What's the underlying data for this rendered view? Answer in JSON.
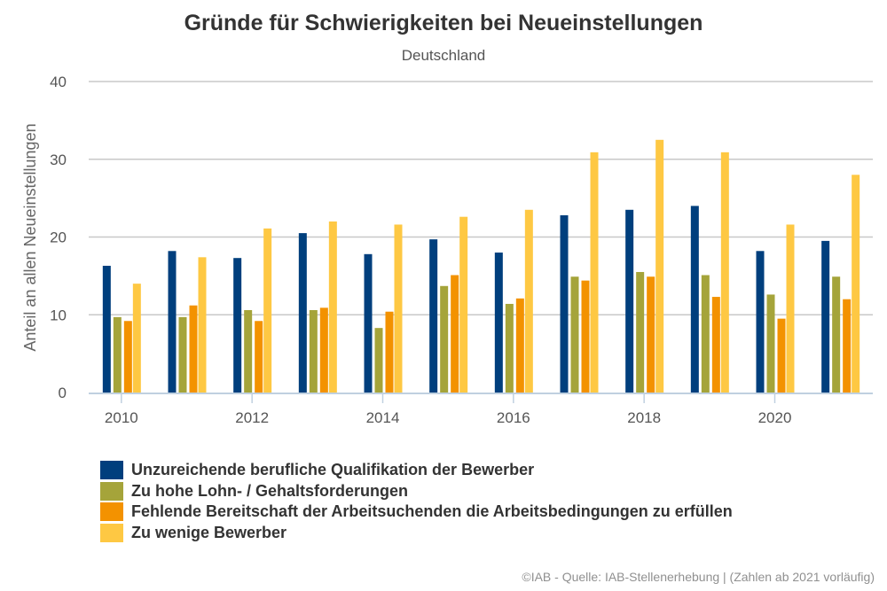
{
  "chart_data": {
    "type": "bar",
    "title": "Gründe für Schwierigkeiten bei Neueinstellungen",
    "subtitle": "Deutschland",
    "xlabel": "",
    "ylabel": "Anteil an allen Neueinstellungen",
    "ylim": [
      0,
      40
    ],
    "yticks": [
      "0",
      "10",
      "20",
      "30",
      "40"
    ],
    "ytick_values": [
      0,
      10,
      20,
      30,
      40
    ],
    "grid": true,
    "categories": [
      "2010",
      "2011",
      "2012",
      "2013",
      "2014",
      "2015",
      "2016",
      "2017",
      "2018",
      "2019",
      "2020",
      "2021"
    ],
    "xtick_labels": [
      "2010",
      "2012",
      "2014",
      "2016",
      "2018",
      "2020"
    ],
    "legend_position": "bottom-left",
    "series": [
      {
        "name": "Unzureichende berufliche Qualifikation der Bewerber",
        "color": "#003f7d",
        "values": [
          16.3,
          18.2,
          17.3,
          20.5,
          17.8,
          19.7,
          18.0,
          22.8,
          23.5,
          24.0,
          18.2,
          19.5
        ]
      },
      {
        "name": "Zu hohe Lohn- / Gehaltsforderungen",
        "color": "#a5a43a",
        "values": [
          9.7,
          9.7,
          10.6,
          10.6,
          8.3,
          13.7,
          11.4,
          14.9,
          15.5,
          15.1,
          12.6,
          14.9
        ]
      },
      {
        "name": "Fehlende Bereitschaft der Arbeitsuchenden die Arbeitsbedingungen zu erfüllen",
        "color": "#f39200",
        "values": [
          9.2,
          11.2,
          9.2,
          10.9,
          10.4,
          15.1,
          12.1,
          14.4,
          14.9,
          12.3,
          9.5,
          12.0
        ]
      },
      {
        "name": "Zu wenige Bewerber",
        "color": "#fec843",
        "values": [
          14.0,
          17.4,
          21.1,
          22.0,
          21.6,
          22.6,
          23.5,
          30.9,
          32.5,
          30.9,
          21.6,
          28.0
        ]
      }
    ]
  },
  "credits": "©IAB - Quelle: IAB-Stellenerhebung | (Zahlen ab 2021 vorläufig)"
}
